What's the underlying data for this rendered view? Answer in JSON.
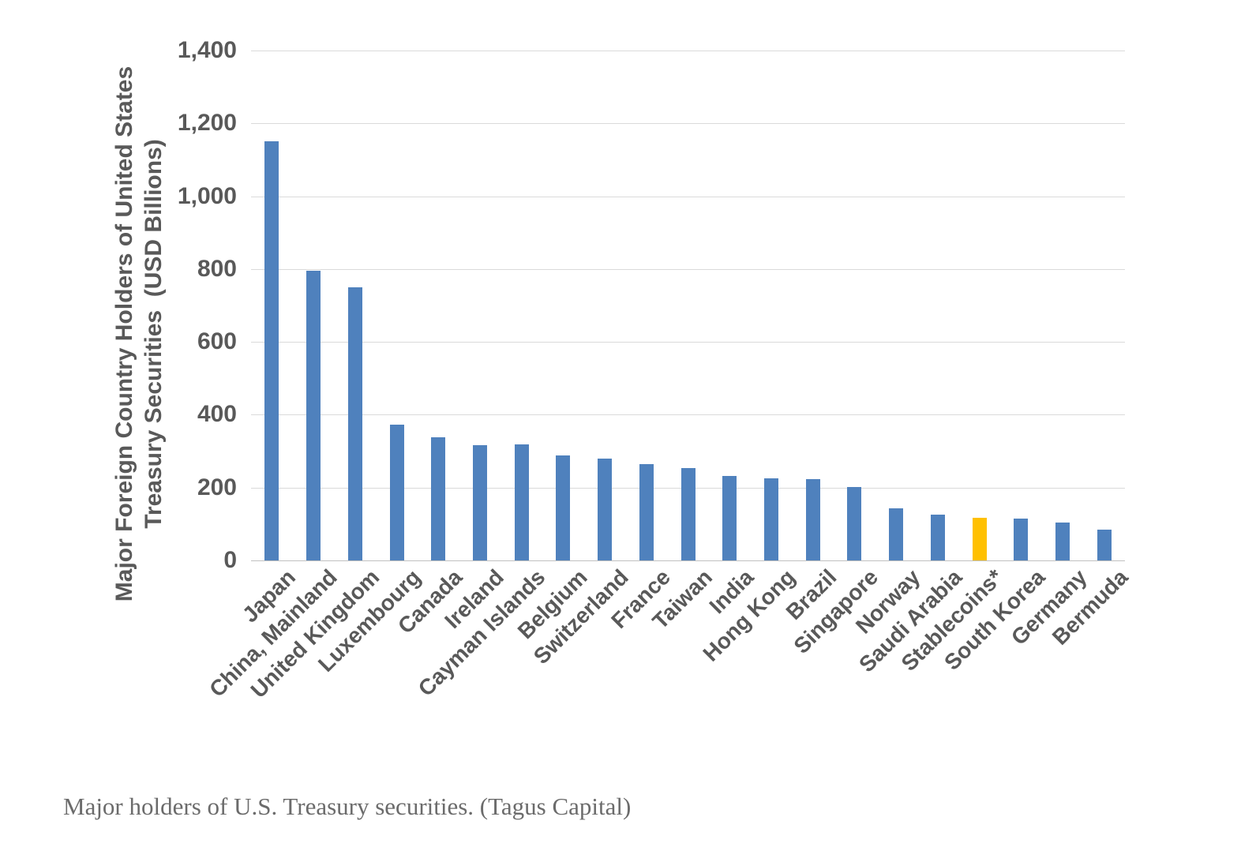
{
  "caption": {
    "text": "Major holders of U.S. Treasury securities. (Tagus Capital)"
  },
  "colors": {
    "grid": "#dadada",
    "axis_line": "#c0c0c0",
    "label_text": "#595959",
    "caption_text": "#6b6b6b",
    "background": "#ffffff"
  },
  "chart_data": {
    "type": "bar",
    "title": "",
    "ylabel": "Major Foreign Country Holders of United States Treasury Securities (USD Billions)",
    "ylabel_lines": [
      "Major Foreign Country Holders of United States",
      "Treasury Securities  (USD Billions)"
    ],
    "xlabel": "",
    "categories": [
      "Japan",
      "China, Mainland",
      "United Kingdom",
      "Luxembourg",
      "Canada",
      "Ireland",
      "Cayman Islands",
      "Belgium",
      "Switzerland",
      "France",
      "Taiwan",
      "India",
      "Hong Kong",
      "Brazil",
      "Singapore",
      "Norway",
      "Saudi Arabia",
      "Stablecoins*",
      "South Korea",
      "Germany",
      "Bermuda"
    ],
    "values": [
      1150,
      795,
      750,
      372,
      338,
      317,
      318,
      289,
      280,
      265,
      253,
      231,
      226,
      224,
      201,
      143,
      126,
      117,
      114,
      105,
      84
    ],
    "units": "USD Billions",
    "ylim": [
      0,
      1400
    ],
    "ytick_interval": 200,
    "ytick_labels": [
      "1,400",
      "1,200",
      "1,000",
      "800",
      "600",
      "400",
      "200",
      "0"
    ],
    "grid": true,
    "legend": false,
    "bar_color": "#4f81bd",
    "highlight_color": "#ffc000",
    "highlight_index": 17,
    "highlight_category": "Stablecoins*"
  }
}
